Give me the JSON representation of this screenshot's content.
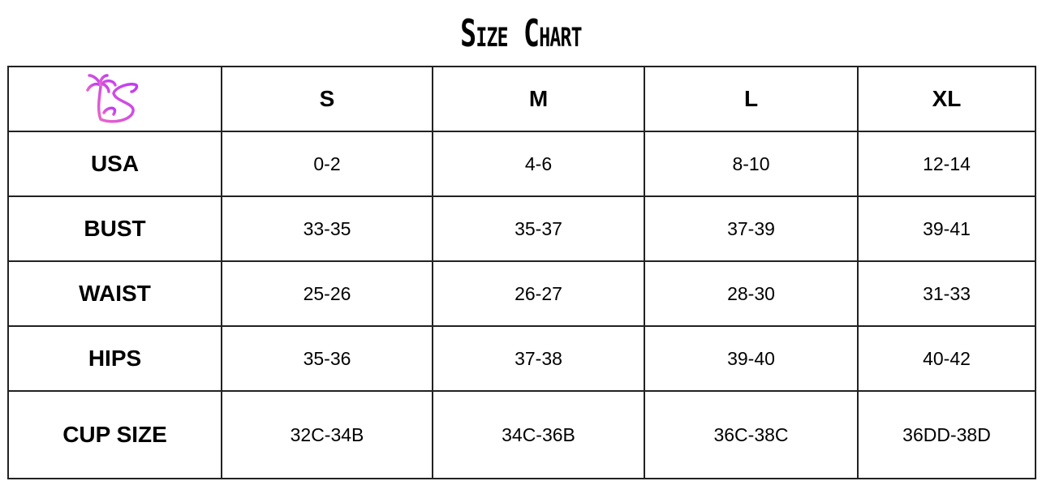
{
  "title": "Size Chart",
  "logo": {
    "name": "palm-tree-s-logo",
    "colors": [
      "#e060d0",
      "#c040f0"
    ]
  },
  "columns": [
    "S",
    "M",
    "L",
    "XL"
  ],
  "rows": [
    {
      "label": "USA",
      "values": [
        "0-2",
        "4-6",
        "8-10",
        "12-14"
      ]
    },
    {
      "label": "BUST",
      "values": [
        "33-35",
        "35-37",
        "37-39",
        "39-41"
      ]
    },
    {
      "label": "WAIST",
      "values": [
        "25-26",
        "26-27",
        "28-30",
        "31-33"
      ]
    },
    {
      "label": "HIPS",
      "values": [
        "35-36",
        "37-38",
        "39-40",
        "40-42"
      ]
    },
    {
      "label": "CUP SIZE",
      "values": [
        "32C-34B",
        "34C-36B",
        "36C-38C",
        "36DD-38D"
      ]
    }
  ]
}
